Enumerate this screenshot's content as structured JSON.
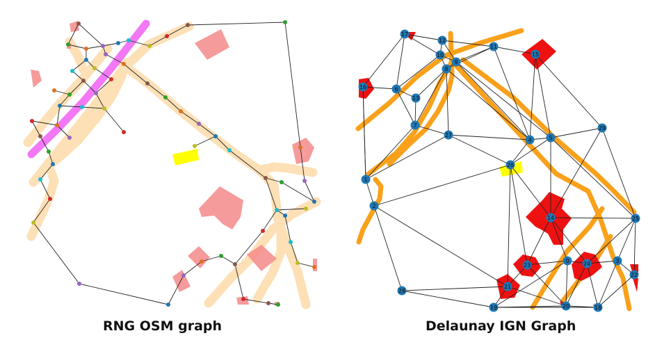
{
  "left_panel": {
    "caption": "RNG OSM graph"
  },
  "right_panel": {
    "caption": "Delaunay IGN Graph",
    "node_labels": [
      "0",
      "1",
      "2",
      "3",
      "4",
      "5",
      "6",
      "7",
      "8",
      "9",
      "10",
      "11",
      "12",
      "13",
      "14",
      "15",
      "16",
      "17",
      "18",
      "19",
      "20",
      "21",
      "22",
      "23",
      "24",
      "25",
      "26",
      "27",
      "28",
      "29"
    ]
  },
  "colors": {
    "road_light": "#fde0b6",
    "railway": "#f060f4",
    "road_orange": "#f9a11b",
    "building_light": "#f48a8a",
    "building_red": "#ee1111",
    "highlight": "#ffff00",
    "node_blue": "#1f77b4",
    "edge": "#222222"
  }
}
